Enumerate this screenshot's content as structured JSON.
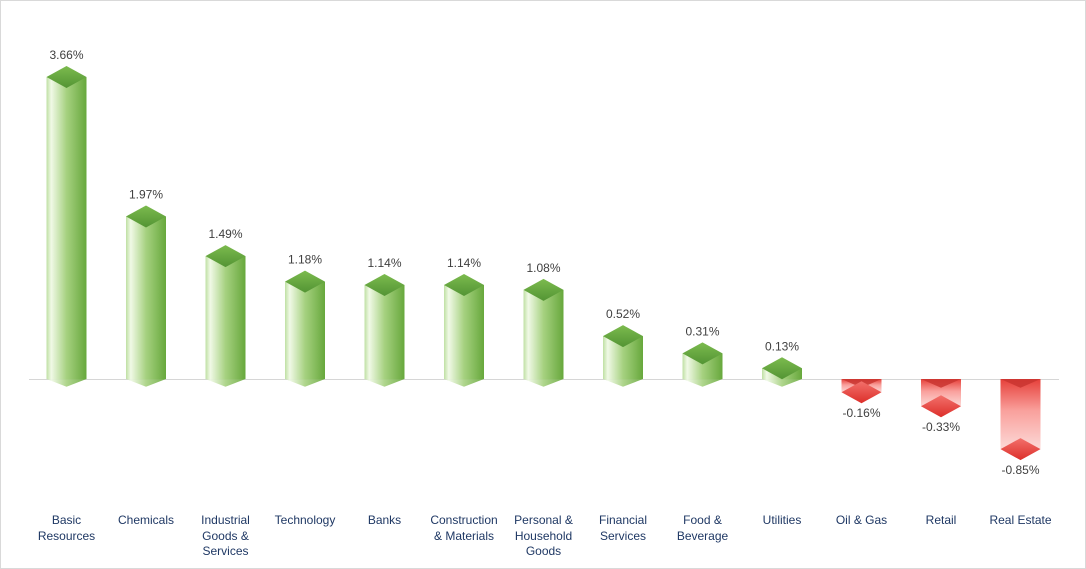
{
  "chart_data": {
    "type": "bar",
    "style": "3d-bar",
    "title": "",
    "xlabel": "",
    "ylabel": "",
    "grid": false,
    "legend": false,
    "ylim": [
      -1,
      4
    ],
    "categories": [
      "Basic Resources",
      "Chemicals",
      "Industrial Goods & Services",
      "Technology",
      "Banks",
      "Construction & Materials",
      "Personal & Household Goods",
      "Financial Services",
      "Food & Beverage",
      "Utilities",
      "Oil & Gas",
      "Retail",
      "Real Estate"
    ],
    "values": [
      3.66,
      1.97,
      1.49,
      1.18,
      1.14,
      1.14,
      1.08,
      0.52,
      0.31,
      0.13,
      -0.16,
      -0.33,
      -0.85
    ],
    "value_labels": [
      "3.66%",
      "1.97%",
      "1.49%",
      "1.18%",
      "1.14%",
      "1.14%",
      "1.08%",
      "0.52%",
      "0.31%",
      "0.13%",
      "-0.16%",
      "-0.33%",
      "-0.85%"
    ],
    "colors": {
      "positive_body_light": "#f0f9e6",
      "positive_body_mid": "#a6d180",
      "positive_body_dark": "#67a83c",
      "positive_top_light": "#7cbb4e",
      "positive_top_dark": "#539434",
      "negative_body_dark": "#e6403a",
      "negative_body_mid": "#f9a09c",
      "negative_body_light": "#fcd9d7",
      "negative_top_light": "#f2706b",
      "negative_top_dark": "#dd2f2a",
      "negative_inner_edge": "#c93530",
      "axis_line": "#d6d6d6",
      "category_label": "#1f3864",
      "value_label": "#404040",
      "border": "#d9d9d9",
      "background": "#ffffff"
    }
  }
}
